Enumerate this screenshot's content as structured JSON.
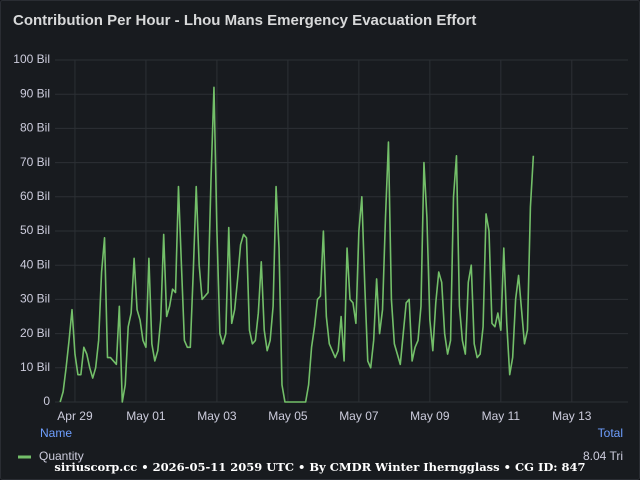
{
  "chart_data": {
    "type": "line",
    "title": "Contribution Per Hour - Lhou Mans Emergency Evacuation Effort",
    "x": [
      -10,
      -8,
      -6,
      -4,
      -2,
      0,
      2,
      4,
      6,
      8,
      10,
      12,
      14,
      16,
      18,
      20,
      22,
      24,
      26,
      28,
      30,
      32,
      34,
      36,
      38,
      40,
      42,
      44,
      46,
      48,
      50,
      52,
      54,
      56,
      58,
      60,
      62,
      64,
      66,
      68,
      70,
      72,
      74,
      76,
      78,
      80,
      82,
      84,
      86,
      88,
      90,
      92,
      94,
      96,
      98,
      100,
      102,
      104,
      106,
      108,
      110,
      112,
      114,
      116,
      118,
      120,
      122,
      124,
      126,
      128,
      130,
      132,
      134,
      136,
      138,
      140,
      142,
      144,
      146,
      148,
      150,
      152,
      154,
      156,
      158,
      160,
      162,
      164,
      166,
      168,
      170,
      172,
      174,
      176,
      178,
      180,
      182,
      184,
      186,
      188,
      190,
      192,
      194,
      196,
      198,
      200,
      202,
      204,
      206,
      208,
      210,
      212,
      214,
      216,
      218,
      220,
      222,
      224,
      226,
      228,
      230,
      232,
      234,
      236,
      238,
      240,
      242,
      244,
      246,
      248,
      250,
      252,
      254,
      256,
      258,
      260,
      262,
      264,
      266,
      268,
      270,
      272,
      274,
      276,
      278,
      280,
      282,
      284,
      286,
      288,
      290,
      292,
      294,
      296,
      298,
      300,
      302,
      304,
      306,
      308,
      310
    ],
    "series": [
      {
        "name": "Quantity",
        "color": "#73bf69",
        "total": 8040,
        "total_label": "8.04 Tri",
        "values": [
          0,
          3,
          10,
          18,
          27,
          14,
          8,
          8,
          16,
          14,
          10,
          7,
          10,
          18,
          38,
          48,
          13,
          13,
          12,
          11,
          28,
          0,
          5,
          22,
          26,
          42,
          27,
          24,
          18,
          16,
          42,
          17,
          12,
          15,
          24,
          49,
          25,
          28,
          33,
          32,
          63,
          40,
          18,
          16,
          16,
          38,
          63,
          40,
          30,
          31,
          32,
          65,
          92,
          50,
          20,
          17,
          20,
          51,
          23,
          27,
          36,
          46,
          49,
          48,
          21,
          17,
          18,
          26,
          41,
          21,
          15,
          18,
          28,
          63,
          45,
          5,
          0,
          0,
          0,
          0,
          0,
          0,
          0,
          0,
          5,
          16,
          22,
          30,
          31,
          50,
          25,
          17,
          15,
          13,
          15,
          25,
          12,
          45,
          30,
          29,
          23,
          50,
          60,
          34,
          12,
          10,
          18,
          36,
          20,
          27,
          54,
          76,
          30,
          17,
          14,
          11,
          20,
          29,
          30,
          12,
          16,
          18,
          28,
          70,
          54,
          24,
          15,
          29,
          38,
          35,
          20,
          14,
          18,
          60,
          72,
          28,
          18,
          14,
          35,
          40,
          17,
          13,
          14,
          22,
          55,
          50,
          23,
          22,
          26,
          21,
          45,
          23,
          8,
          13,
          30,
          37,
          27,
          17,
          21,
          57,
          72
        ]
      }
    ],
    "xlim": [
      -13.5,
      374
    ],
    "xticks": [
      {
        "value": 0,
        "label": "Apr 29"
      },
      {
        "value": 48,
        "label": "May 01"
      },
      {
        "value": 96,
        "label": "May 03"
      },
      {
        "value": 144,
        "label": "May 05"
      },
      {
        "value": 192,
        "label": "May 07"
      },
      {
        "value": 240,
        "label": "May 09"
      },
      {
        "value": 288,
        "label": "May 11"
      },
      {
        "value": 336,
        "label": "May 13"
      }
    ],
    "ylim": [
      0,
      100
    ],
    "yticks": [
      0,
      {
        "value": 10,
        "label": "10 Bil"
      },
      {
        "value": 20,
        "label": "20 Bil"
      },
      {
        "value": 30,
        "label": "30 Bil"
      },
      {
        "value": 40,
        "label": "40 Bil"
      },
      {
        "value": 50,
        "label": "50 Bil"
      },
      {
        "value": 60,
        "label": "60 Bil"
      },
      {
        "value": 70,
        "label": "70 Bil"
      },
      {
        "value": 80,
        "label": "80 Bil"
      },
      {
        "value": 90,
        "label": "90 Bil"
      },
      {
        "value": 100,
        "label": "100 Bil"
      }
    ],
    "grid": true,
    "legend_headers": [
      "Name",
      "Total"
    ],
    "footer": "siriuscorp.cc • 2026-05-11 2059 UTC • By CMDR Winter Iherngglass • CG ID: 847"
  }
}
